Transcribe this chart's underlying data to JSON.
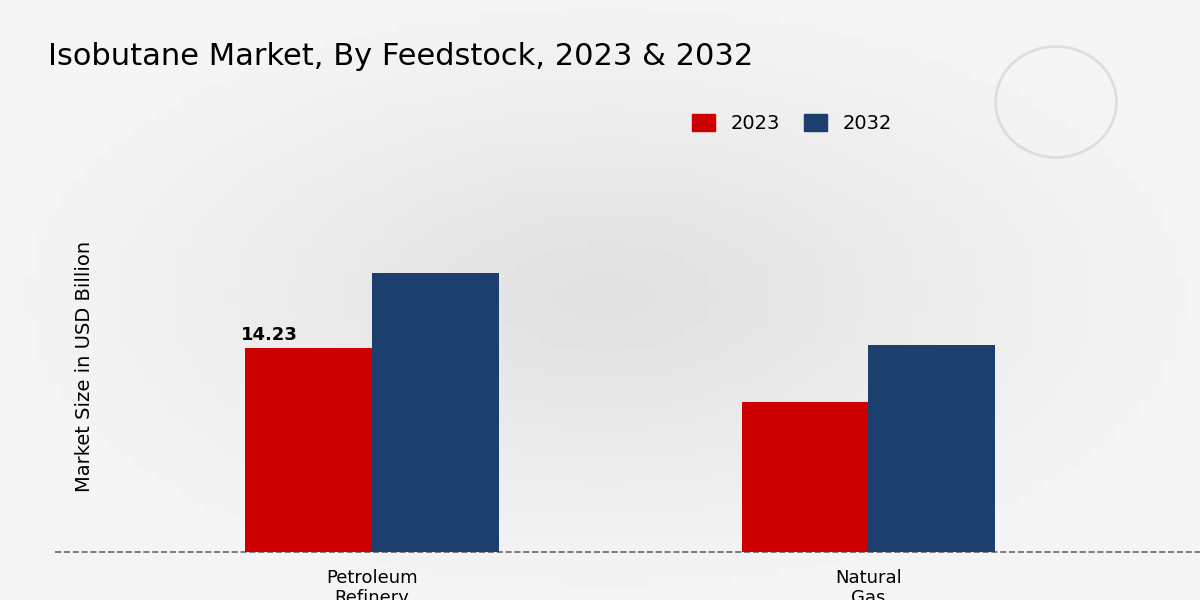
{
  "title": "Isobutane Market, By Feedstock, 2023 & 2032",
  "ylabel": "Market Size in USD Billion",
  "categories": [
    "Petroleum\nRefinery",
    "Natural\nGas\nProcessing"
  ],
  "years": [
    "2023",
    "2032"
  ],
  "values_2023": [
    14.23,
    10.5
  ],
  "values_2032": [
    19.5,
    14.5
  ],
  "annotation_2023_cat0": "14.23",
  "bar_color_2023": "#CC0000",
  "bar_color_2032": "#1C3F6E",
  "background_color_light": "#F0F0F0",
  "background_color_dark": "#D0D0D0",
  "title_fontsize": 22,
  "ylabel_fontsize": 14,
  "tick_fontsize": 13,
  "legend_fontsize": 14,
  "annotation_fontsize": 13,
  "bar_width": 0.12,
  "ylim": [
    0,
    26
  ],
  "bottom_stripe_color": "#CC0000",
  "logo_color": "#D0D0D0"
}
